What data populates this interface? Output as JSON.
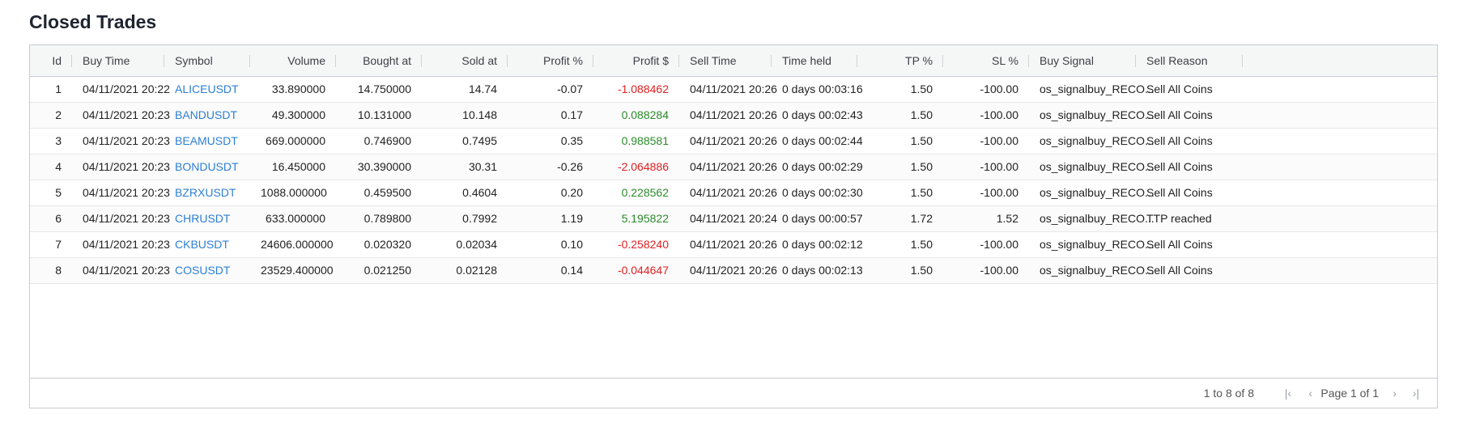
{
  "page_title": "Closed Trades",
  "columns": [
    "Id",
    "Buy Time",
    "Symbol",
    "Volume",
    "Bought at",
    "Sold at",
    "Profit %",
    "Profit $",
    "Sell Time",
    "Time held",
    "TP %",
    "SL %",
    "Buy Signal",
    "Sell Reason"
  ],
  "rows": [
    [
      "1",
      "04/11/2021 20:22",
      "ALICEUSDT",
      "33.890000",
      "14.750000",
      "14.74",
      "-0.07",
      "-1.088462",
      "04/11/2021 20:26",
      "0 days 00:03:16",
      "1.50",
      "-100.00",
      "os_signalbuy_RECO...",
      "Sell All Coins"
    ],
    [
      "2",
      "04/11/2021 20:23",
      "BANDUSDT",
      "49.300000",
      "10.131000",
      "10.148",
      "0.17",
      "0.088284",
      "04/11/2021 20:26",
      "0 days 00:02:43",
      "1.50",
      "-100.00",
      "os_signalbuy_RECO...",
      "Sell All Coins"
    ],
    [
      "3",
      "04/11/2021 20:23",
      "BEAMUSDT",
      "669.000000",
      "0.746900",
      "0.7495",
      "0.35",
      "0.988581",
      "04/11/2021 20:26",
      "0 days 00:02:44",
      "1.50",
      "-100.00",
      "os_signalbuy_RECO...",
      "Sell All Coins"
    ],
    [
      "4",
      "04/11/2021 20:23",
      "BONDUSDT",
      "16.450000",
      "30.390000",
      "30.31",
      "-0.26",
      "-2.064886",
      "04/11/2021 20:26",
      "0 days 00:02:29",
      "1.50",
      "-100.00",
      "os_signalbuy_RECO...",
      "Sell All Coins"
    ],
    [
      "5",
      "04/11/2021 20:23",
      "BZRXUSDT",
      "1088.000000",
      "0.459500",
      "0.4604",
      "0.20",
      "0.228562",
      "04/11/2021 20:26",
      "0 days 00:02:30",
      "1.50",
      "-100.00",
      "os_signalbuy_RECO...",
      "Sell All Coins"
    ],
    [
      "6",
      "04/11/2021 20:23",
      "CHRUSDT",
      "633.000000",
      "0.789800",
      "0.7992",
      "1.19",
      "5.195822",
      "04/11/2021 20:24",
      "0 days 00:00:57",
      "1.72",
      "1.52",
      "os_signalbuy_RECO...",
      "TTP reached"
    ],
    [
      "7",
      "04/11/2021 20:23",
      "CKBUSDT",
      "24606.000000",
      "0.020320",
      "0.02034",
      "0.10",
      "-0.258240",
      "04/11/2021 20:26",
      "0 days 00:02:12",
      "1.50",
      "-100.00",
      "os_signalbuy_RECO...",
      "Sell All Coins"
    ],
    [
      "8",
      "04/11/2021 20:23",
      "COSUSDT",
      "23529.400000",
      "0.021250",
      "0.02128",
      "0.14",
      "-0.044647",
      "04/11/2021 20:26",
      "0 days 00:02:13",
      "1.50",
      "-100.00",
      "os_signalbuy_RECO...",
      "Sell All Coins"
    ]
  ],
  "pagination": {
    "summary": "1 to 8 of 8",
    "page_label": "Page 1 of 1",
    "first_icon": "first-page-icon",
    "prev_icon": "prev-page-icon",
    "next_icon": "next-page-icon",
    "last_icon": "last-page-icon"
  },
  "colors": {
    "link": "#2d7fd3",
    "negative": "#e02020",
    "positive": "#2b8a2b"
  }
}
